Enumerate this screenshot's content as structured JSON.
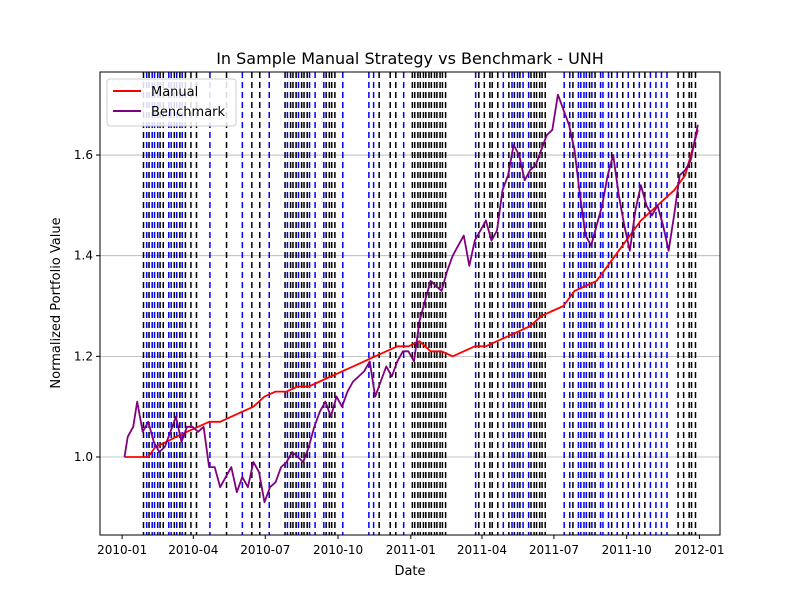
{
  "chart_data": {
    "type": "line",
    "title": "In Sample Manual Strategy vs Benchmark - UNH",
    "xlabel": "Date",
    "ylabel": "Normalized Portfolio Value",
    "xlim": [
      "2009-12-04",
      "2012-01-27"
    ],
    "ylim": [
      0.845,
      1.765
    ],
    "grid": "y",
    "legend_position": "top-left",
    "x_ticks": [
      {
        "date": "2010-01-01",
        "label": "2010-01"
      },
      {
        "date": "2010-04-01",
        "label": "2010-04"
      },
      {
        "date": "2010-07-01",
        "label": "2010-07"
      },
      {
        "date": "2010-10-01",
        "label": "2010-10"
      },
      {
        "date": "2011-01-01",
        "label": "2011-01"
      },
      {
        "date": "2011-04-01",
        "label": "2011-04"
      },
      {
        "date": "2011-07-01",
        "label": "2011-07"
      },
      {
        "date": "2011-10-01",
        "label": "2011-10"
      },
      {
        "date": "2012-01-01",
        "label": "2012-01"
      }
    ],
    "y_ticks": [
      {
        "value": 1.0,
        "label": "1.0"
      },
      {
        "value": 1.2,
        "label": "1.2"
      },
      {
        "value": 1.4,
        "label": "1.4"
      },
      {
        "value": 1.6,
        "label": "1.6"
      }
    ],
    "series": [
      {
        "name": "Manual",
        "color": "#ff0000",
        "points": [
          [
            "2010-01-04",
            1.0
          ],
          [
            "2010-01-20",
            1.0
          ],
          [
            "2010-02-03",
            1.0
          ],
          [
            "2010-02-12",
            1.02
          ],
          [
            "2010-02-26",
            1.03
          ],
          [
            "2010-03-10",
            1.04
          ],
          [
            "2010-03-24",
            1.05
          ],
          [
            "2010-04-07",
            1.06
          ],
          [
            "2010-04-21",
            1.07
          ],
          [
            "2010-05-05",
            1.07
          ],
          [
            "2010-05-19",
            1.08
          ],
          [
            "2010-06-02",
            1.09
          ],
          [
            "2010-06-16",
            1.1
          ],
          [
            "2010-06-30",
            1.12
          ],
          [
            "2010-07-14",
            1.13
          ],
          [
            "2010-07-28",
            1.13
          ],
          [
            "2010-08-11",
            1.14
          ],
          [
            "2010-08-25",
            1.14
          ],
          [
            "2010-09-08",
            1.15
          ],
          [
            "2010-09-22",
            1.16
          ],
          [
            "2010-10-06",
            1.17
          ],
          [
            "2010-10-20",
            1.18
          ],
          [
            "2010-11-03",
            1.19
          ],
          [
            "2010-11-17",
            1.2
          ],
          [
            "2010-12-01",
            1.21
          ],
          [
            "2010-12-15",
            1.22
          ],
          [
            "2010-12-29",
            1.22
          ],
          [
            "2011-01-12",
            1.23
          ],
          [
            "2011-01-26",
            1.21
          ],
          [
            "2011-02-09",
            1.21
          ],
          [
            "2011-02-23",
            1.2
          ],
          [
            "2011-03-09",
            1.21
          ],
          [
            "2011-03-23",
            1.22
          ],
          [
            "2011-04-06",
            1.22
          ],
          [
            "2011-04-20",
            1.23
          ],
          [
            "2011-05-04",
            1.24
          ],
          [
            "2011-05-18",
            1.25
          ],
          [
            "2011-06-01",
            1.26
          ],
          [
            "2011-06-15",
            1.28
          ],
          [
            "2011-06-29",
            1.29
          ],
          [
            "2011-07-13",
            1.3
          ],
          [
            "2011-07-27",
            1.33
          ],
          [
            "2011-08-10",
            1.34
          ],
          [
            "2011-08-24",
            1.35
          ],
          [
            "2011-09-07",
            1.38
          ],
          [
            "2011-09-21",
            1.41
          ],
          [
            "2011-10-05",
            1.44
          ],
          [
            "2011-10-19",
            1.47
          ],
          [
            "2011-11-02",
            1.49
          ],
          [
            "2011-11-16",
            1.51
          ],
          [
            "2011-11-30",
            1.53
          ],
          [
            "2011-12-14",
            1.56
          ],
          [
            "2011-12-30",
            1.65
          ]
        ]
      },
      {
        "name": "Benchmark",
        "color": "#800080",
        "points": [
          [
            "2010-01-04",
            1.0
          ],
          [
            "2010-01-08",
            1.04
          ],
          [
            "2010-01-15",
            1.06
          ],
          [
            "2010-01-20",
            1.11
          ],
          [
            "2010-01-27",
            1.05
          ],
          [
            "2010-02-03",
            1.07
          ],
          [
            "2010-02-10",
            1.03
          ],
          [
            "2010-02-17",
            1.01
          ],
          [
            "2010-02-24",
            1.02
          ],
          [
            "2010-03-03",
            1.05
          ],
          [
            "2010-03-10",
            1.08
          ],
          [
            "2010-03-17",
            1.03
          ],
          [
            "2010-03-24",
            1.06
          ],
          [
            "2010-03-31",
            1.06
          ],
          [
            "2010-04-07",
            1.05
          ],
          [
            "2010-04-14",
            1.06
          ],
          [
            "2010-04-21",
            0.98
          ],
          [
            "2010-04-28",
            0.98
          ],
          [
            "2010-05-05",
            0.94
          ],
          [
            "2010-05-12",
            0.96
          ],
          [
            "2010-05-19",
            0.98
          ],
          [
            "2010-05-26",
            0.93
          ],
          [
            "2010-06-02",
            0.96
          ],
          [
            "2010-06-09",
            0.94
          ],
          [
            "2010-06-16",
            0.99
          ],
          [
            "2010-06-23",
            0.97
          ],
          [
            "2010-06-30",
            0.91
          ],
          [
            "2010-07-07",
            0.94
          ],
          [
            "2010-07-14",
            0.95
          ],
          [
            "2010-07-21",
            0.98
          ],
          [
            "2010-07-28",
            0.99
          ],
          [
            "2010-08-04",
            1.01
          ],
          [
            "2010-08-11",
            1.0
          ],
          [
            "2010-08-18",
            0.99
          ],
          [
            "2010-08-25",
            1.02
          ],
          [
            "2010-09-01",
            1.06
          ],
          [
            "2010-09-08",
            1.09
          ],
          [
            "2010-09-15",
            1.11
          ],
          [
            "2010-09-22",
            1.08
          ],
          [
            "2010-09-29",
            1.12
          ],
          [
            "2010-10-06",
            1.1
          ],
          [
            "2010-10-13",
            1.13
          ],
          [
            "2010-10-20",
            1.15
          ],
          [
            "2010-10-27",
            1.16
          ],
          [
            "2010-11-03",
            1.17
          ],
          [
            "2010-11-10",
            1.19
          ],
          [
            "2010-11-17",
            1.12
          ],
          [
            "2010-11-24",
            1.15
          ],
          [
            "2010-12-01",
            1.18
          ],
          [
            "2010-12-08",
            1.16
          ],
          [
            "2010-12-15",
            1.19
          ],
          [
            "2010-12-22",
            1.21
          ],
          [
            "2010-12-29",
            1.21
          ],
          [
            "2011-01-05",
            1.19
          ],
          [
            "2011-01-12",
            1.27
          ],
          [
            "2011-01-19",
            1.31
          ],
          [
            "2011-01-26",
            1.35
          ],
          [
            "2011-02-02",
            1.34
          ],
          [
            "2011-02-09",
            1.33
          ],
          [
            "2011-02-16",
            1.37
          ],
          [
            "2011-02-23",
            1.4
          ],
          [
            "2011-03-02",
            1.42
          ],
          [
            "2011-03-09",
            1.44
          ],
          [
            "2011-03-16",
            1.38
          ],
          [
            "2011-03-23",
            1.43
          ],
          [
            "2011-03-30",
            1.45
          ],
          [
            "2011-04-06",
            1.47
          ],
          [
            "2011-04-13",
            1.43
          ],
          [
            "2011-04-20",
            1.45
          ],
          [
            "2011-04-27",
            1.53
          ],
          [
            "2011-05-04",
            1.56
          ],
          [
            "2011-05-11",
            1.62
          ],
          [
            "2011-05-18",
            1.6
          ],
          [
            "2011-05-25",
            1.55
          ],
          [
            "2011-06-01",
            1.57
          ],
          [
            "2011-06-08",
            1.58
          ],
          [
            "2011-06-15",
            1.61
          ],
          [
            "2011-06-22",
            1.64
          ],
          [
            "2011-06-29",
            1.65
          ],
          [
            "2011-07-06",
            1.72
          ],
          [
            "2011-07-13",
            1.69
          ],
          [
            "2011-07-20",
            1.66
          ],
          [
            "2011-07-27",
            1.61
          ],
          [
            "2011-08-03",
            1.52
          ],
          [
            "2011-08-10",
            1.44
          ],
          [
            "2011-08-17",
            1.42
          ],
          [
            "2011-08-24",
            1.46
          ],
          [
            "2011-08-31",
            1.5
          ],
          [
            "2011-09-07",
            1.56
          ],
          [
            "2011-09-14",
            1.6
          ],
          [
            "2011-09-21",
            1.52
          ],
          [
            "2011-09-28",
            1.46
          ],
          [
            "2011-10-05",
            1.41
          ],
          [
            "2011-10-12",
            1.49
          ],
          [
            "2011-10-19",
            1.54
          ],
          [
            "2011-10-26",
            1.5
          ],
          [
            "2011-11-02",
            1.48
          ],
          [
            "2011-11-09",
            1.5
          ],
          [
            "2011-11-16",
            1.46
          ],
          [
            "2011-11-23",
            1.41
          ],
          [
            "2011-11-30",
            1.48
          ],
          [
            "2011-12-07",
            1.56
          ],
          [
            "2011-12-14",
            1.57
          ],
          [
            "2011-12-21",
            1.59
          ],
          [
            "2011-12-30",
            1.66
          ]
        ]
      }
    ],
    "signal_lines": {
      "long_color": "#0000ff",
      "short_color": "#000000",
      "long": [
        "2010-02-01",
        "2010-02-08",
        "2010-02-11",
        "2010-02-15",
        "2010-03-01",
        "2010-03-04",
        "2010-03-11",
        "2010-03-18",
        "2010-04-22",
        "2010-06-02",
        "2010-07-06",
        "2010-07-29",
        "2010-08-12",
        "2010-08-26",
        "2010-09-02",
        "2010-09-13",
        "2010-10-07",
        "2010-11-09",
        "2010-11-15",
        "2010-12-23",
        "2011-03-24",
        "2011-04-28",
        "2011-05-09",
        "2011-05-16",
        "2011-05-23",
        "2011-05-30",
        "2011-07-14",
        "2011-07-21",
        "2011-08-01",
        "2011-08-04",
        "2011-08-08",
        "2011-08-11",
        "2011-08-18",
        "2011-08-29",
        "2011-09-01",
        "2011-09-08",
        "2011-09-19",
        "2011-10-03",
        "2011-10-17",
        "2011-10-31",
        "2011-11-07",
        "2011-11-14",
        "2011-11-21"
      ],
      "short": [
        "2010-01-28",
        "2010-02-04",
        "2010-02-18",
        "2010-02-22",
        "2010-03-08",
        "2010-03-15",
        "2010-03-22",
        "2010-03-29",
        "2010-04-05",
        "2010-05-13",
        "2010-06-14",
        "2010-06-24",
        "2010-07-26",
        "2010-08-02",
        "2010-08-05",
        "2010-08-09",
        "2010-08-16",
        "2010-08-19",
        "2010-08-23",
        "2010-09-16",
        "2010-09-20",
        "2010-09-23",
        "2010-09-27",
        "2010-11-22",
        "2010-12-06",
        "2010-12-13",
        "2011-01-03",
        "2011-01-06",
        "2011-01-10",
        "2011-01-13",
        "2011-01-17",
        "2011-01-20",
        "2011-01-24",
        "2011-01-27",
        "2011-01-31",
        "2011-02-03",
        "2011-02-07",
        "2011-02-10",
        "2011-02-14",
        "2011-03-28",
        "2011-04-04",
        "2011-04-11",
        "2011-04-14",
        "2011-04-21",
        "2011-05-05",
        "2011-05-12",
        "2011-05-19",
        "2011-06-02",
        "2011-06-06",
        "2011-06-09",
        "2011-06-13",
        "2011-06-16",
        "2011-06-20",
        "2011-07-25",
        "2011-08-15",
        "2011-08-22",
        "2011-09-12",
        "2011-09-26",
        "2011-10-10",
        "2011-10-24",
        "2011-12-05",
        "2011-12-12",
        "2011-12-19",
        "2011-12-22",
        "2011-12-27"
      ]
    }
  }
}
